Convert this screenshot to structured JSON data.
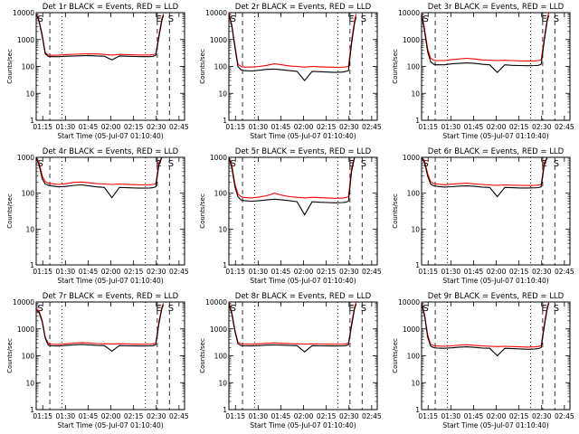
{
  "chart_data": [
    {
      "type": "line",
      "title": "Det 1r BLACK = Events, RED = LLD",
      "xlabel": "Start Time (05-Jul-07 01:10:40)",
      "ylabel": "Counts/sec",
      "yscale": "log",
      "ylim": [
        1,
        10000
      ],
      "x_ticks": [
        "01:15",
        "01:30",
        "01:45",
        "02:00",
        "02:15",
        "02:30",
        "02:45"
      ],
      "y_ticks": [
        "1",
        "10",
        "100",
        "1000",
        "10000"
      ],
      "markers": [
        "S",
        "E",
        "S"
      ],
      "x": [
        0,
        2,
        4,
        6,
        8,
        10,
        15,
        20,
        25,
        30,
        35,
        40,
        45,
        50,
        55,
        60,
        65,
        70,
        75,
        77,
        79,
        81,
        83,
        84
      ],
      "series": [
        {
          "name": "Events",
          "color": "#000000",
          "values": [
            9000,
            4500,
            1300,
            300,
            235,
            230,
            230,
            240,
            245,
            250,
            255,
            245,
            240,
            175,
            245,
            240,
            235,
            230,
            230,
            235,
            260,
            1200,
            5000,
            8000
          ]
        },
        {
          "name": "LLD",
          "color": "#ff0000",
          "values": [
            9500,
            5000,
            1500,
            330,
            265,
            260,
            265,
            275,
            285,
            290,
            295,
            290,
            280,
            265,
            280,
            275,
            270,
            265,
            268,
            270,
            300,
            1400,
            6000,
            9000
          ]
        }
      ]
    },
    {
      "type": "line",
      "title": "Det 2r BLACK = Events, RED = LLD",
      "xlabel": "Start Time (05-Jul-07 01:10:40)",
      "ylabel": "Counts/sec",
      "yscale": "log",
      "ylim": [
        1,
        10000
      ],
      "x_ticks": [
        "01:15",
        "01:30",
        "01:45",
        "02:00",
        "02:15",
        "02:30",
        "02:45"
      ],
      "y_ticks": [
        "1",
        "10",
        "100",
        "1000",
        "10000"
      ],
      "markers": [
        "S",
        "E",
        "S"
      ],
      "x": [
        0,
        2,
        4,
        6,
        8,
        10,
        15,
        20,
        25,
        30,
        35,
        40,
        45,
        50,
        55,
        60,
        65,
        70,
        75,
        77,
        79,
        81,
        83,
        84
      ],
      "series": [
        {
          "name": "Events",
          "color": "#000000",
          "values": [
            9000,
            3000,
            500,
            100,
            75,
            70,
            68,
            72,
            78,
            80,
            75,
            70,
            66,
            30,
            66,
            64,
            62,
            60,
            62,
            65,
            70,
            700,
            4000,
            7000
          ]
        },
        {
          "name": "LLD",
          "color": "#ff0000",
          "values": [
            9500,
            3500,
            600,
            120,
            100,
            95,
            95,
            100,
            110,
            125,
            115,
            105,
            100,
            95,
            100,
            97,
            95,
            93,
            94,
            96,
            100,
            900,
            5000,
            9000
          ]
        }
      ]
    },
    {
      "type": "line",
      "title": "Det 3r BLACK = Events, RED = LLD",
      "xlabel": "Start Time (05-Jul-07 01:10:40)",
      "ylabel": "Counts/sec",
      "yscale": "log",
      "ylim": [
        1,
        10000
      ],
      "x_ticks": [
        "01:15",
        "01:30",
        "01:45",
        "02:00",
        "02:15",
        "02:30",
        "02:45"
      ],
      "y_ticks": [
        "1",
        "10",
        "100",
        "1000",
        "10000"
      ],
      "markers": [
        "S",
        "E",
        "S"
      ],
      "x": [
        0,
        2,
        4,
        6,
        8,
        10,
        15,
        20,
        25,
        30,
        35,
        40,
        45,
        50,
        55,
        60,
        65,
        70,
        75,
        77,
        79,
        81,
        83,
        84
      ],
      "series": [
        {
          "name": "Events",
          "color": "#000000",
          "values": [
            9000,
            2000,
            350,
            150,
            120,
            115,
            115,
            125,
            130,
            135,
            130,
            120,
            115,
            60,
            115,
            110,
            108,
            106,
            108,
            110,
            120,
            900,
            5000,
            8000
          ]
        },
        {
          "name": "LLD",
          "color": "#ff0000",
          "values": [
            9500,
            2500,
            450,
            200,
            170,
            165,
            165,
            180,
            190,
            200,
            190,
            175,
            170,
            165,
            170,
            165,
            162,
            160,
            162,
            165,
            175,
            1100,
            6000,
            9500
          ]
        }
      ]
    },
    {
      "type": "line",
      "title": "Det 4r BLACK = Events, RED = LLD",
      "xlabel": "Start Time (05-Jul-07 01:10:40)",
      "ylabel": "Counts/sec",
      "yscale": "log",
      "ylim": [
        1,
        1000
      ],
      "x_ticks": [
        "01:15",
        "01:30",
        "01:45",
        "02:00",
        "02:15",
        "02:30",
        "02:45"
      ],
      "y_ticks": [
        "1",
        "10",
        "100",
        "1000"
      ],
      "markers": [
        "S",
        "E",
        "S"
      ],
      "x": [
        0,
        2,
        4,
        6,
        8,
        10,
        15,
        20,
        25,
        30,
        35,
        40,
        45,
        50,
        55,
        60,
        65,
        70,
        75,
        77,
        79,
        81,
        83,
        84
      ],
      "series": [
        {
          "name": "Events",
          "color": "#000000",
          "values": [
            1000,
            600,
            250,
            180,
            165,
            160,
            150,
            155,
            165,
            170,
            160,
            150,
            145,
            75,
            145,
            142,
            140,
            138,
            140,
            142,
            150,
            600,
            1000,
            1000
          ]
        },
        {
          "name": "LLD",
          "color": "#ff0000",
          "values": [
            1000,
            700,
            300,
            210,
            190,
            185,
            175,
            185,
            200,
            205,
            195,
            185,
            180,
            175,
            180,
            176,
            173,
            170,
            172,
            175,
            185,
            700,
            1000,
            1000
          ]
        }
      ]
    },
    {
      "type": "line",
      "title": "Det 5r BLACK = Events, RED = LLD",
      "xlabel": "Start Time (05-Jul-07 01:10:40)",
      "ylabel": "Counts/sec",
      "yscale": "log",
      "ylim": [
        1,
        1000
      ],
      "x_ticks": [
        "01:15",
        "01:30",
        "01:45",
        "02:00",
        "02:15",
        "02:30",
        "02:45"
      ],
      "y_ticks": [
        "1",
        "10",
        "100",
        "1000"
      ],
      "markers": [
        "S",
        "E",
        "S"
      ],
      "x": [
        0,
        2,
        4,
        6,
        8,
        10,
        15,
        20,
        25,
        30,
        35,
        40,
        45,
        50,
        55,
        60,
        65,
        70,
        75,
        77,
        79,
        81,
        83,
        84
      ],
      "series": [
        {
          "name": "Events",
          "color": "#000000",
          "values": [
            1000,
            500,
            150,
            80,
            65,
            62,
            60,
            62,
            65,
            68,
            65,
            62,
            58,
            25,
            58,
            56,
            55,
            54,
            55,
            56,
            60,
            400,
            1000,
            1000
          ]
        },
        {
          "name": "LLD",
          "color": "#ff0000",
          "values": [
            1000,
            600,
            180,
            95,
            80,
            76,
            74,
            78,
            85,
            100,
            88,
            80,
            77,
            74,
            77,
            75,
            74,
            72,
            73,
            75,
            80,
            500,
            1000,
            1000
          ]
        }
      ]
    },
    {
      "type": "line",
      "title": "Det 6r BLACK = Events, RED = LLD",
      "xlabel": "Start Time (05-Jul-07 01:10:40)",
      "ylabel": "Counts/sec",
      "yscale": "log",
      "ylim": [
        1,
        1000
      ],
      "x_ticks": [
        "01:15",
        "01:30",
        "01:45",
        "02:00",
        "02:15",
        "02:30",
        "02:45"
      ],
      "y_ticks": [
        "1",
        "10",
        "100",
        "1000"
      ],
      "markers": [
        "S",
        "E",
        "S"
      ],
      "x": [
        0,
        2,
        4,
        6,
        8,
        10,
        15,
        20,
        25,
        30,
        35,
        40,
        45,
        50,
        55,
        60,
        65,
        70,
        75,
        77,
        79,
        81,
        83,
        84
      ],
      "series": [
        {
          "name": "Events",
          "color": "#000000",
          "values": [
            1000,
            700,
            300,
            180,
            160,
            155,
            148,
            152,
            158,
            160,
            155,
            148,
            145,
            80,
            145,
            142,
            140,
            140,
            141,
            143,
            150,
            600,
            1000,
            1000
          ]
        },
        {
          "name": "LLD",
          "color": "#ff0000",
          "values": [
            1000,
            800,
            350,
            210,
            185,
            180,
            172,
            178,
            185,
            190,
            182,
            175,
            170,
            165,
            170,
            167,
            165,
            164,
            165,
            168,
            175,
            700,
            1000,
            1000
          ]
        }
      ]
    },
    {
      "type": "line",
      "title": "Det 7r BLACK = Events, RED = LLD",
      "xlabel": "Start Time (05-Jul-07 01:10:40)",
      "ylabel": "Counts/sec",
      "yscale": "log",
      "ylim": [
        1,
        10000
      ],
      "x_ticks": [
        "01:15",
        "01:30",
        "01:45",
        "02:00",
        "02:15",
        "02:30",
        "02:45"
      ],
      "y_ticks": [
        "1",
        "10",
        "100",
        "1000",
        "10000"
      ],
      "markers": [
        "S",
        "E",
        "S"
      ],
      "x": [
        0,
        2,
        4,
        6,
        8,
        10,
        15,
        20,
        25,
        30,
        35,
        40,
        45,
        50,
        55,
        60,
        65,
        70,
        75,
        77,
        79,
        81,
        83,
        84
      ],
      "series": [
        {
          "name": "Events",
          "color": "#000000",
          "values": [
            5000,
            4000,
            1800,
            450,
            250,
            235,
            230,
            245,
            255,
            265,
            255,
            245,
            240,
            150,
            240,
            235,
            232,
            230,
            232,
            236,
            260,
            1500,
            5500,
            8000
          ]
        },
        {
          "name": "LLD",
          "color": "#ff0000",
          "values": [
            5500,
            4500,
            2000,
            500,
            290,
            270,
            265,
            280,
            295,
            310,
            300,
            285,
            280,
            275,
            280,
            275,
            272,
            270,
            272,
            276,
            300,
            1800,
            6500,
            9000
          ]
        }
      ]
    },
    {
      "type": "line",
      "title": "Det 8r BLACK = Events, RED = LLD",
      "xlabel": "Start Time (05-Jul-07 01:10:40)",
      "ylabel": "Counts/sec",
      "yscale": "log",
      "ylim": [
        1,
        10000
      ],
      "x_ticks": [
        "01:15",
        "01:30",
        "01:45",
        "02:00",
        "02:15",
        "02:30",
        "02:45"
      ],
      "y_ticks": [
        "1",
        "10",
        "100",
        "1000",
        "10000"
      ],
      "markers": [
        "S",
        "E",
        "S"
      ],
      "x": [
        0,
        2,
        4,
        6,
        8,
        10,
        15,
        20,
        25,
        30,
        35,
        40,
        45,
        50,
        55,
        60,
        65,
        70,
        75,
        77,
        79,
        81,
        83,
        84
      ],
      "series": [
        {
          "name": "Events",
          "color": "#000000",
          "values": [
            9000,
            3500,
            800,
            280,
            240,
            235,
            232,
            240,
            250,
            255,
            250,
            242,
            238,
            140,
            238,
            235,
            232,
            230,
            232,
            236,
            260,
            1300,
            5500,
            8500
          ]
        },
        {
          "name": "LLD",
          "color": "#ff0000",
          "values": [
            9500,
            4000,
            900,
            320,
            280,
            275,
            270,
            280,
            292,
            300,
            292,
            282,
            278,
            272,
            278,
            275,
            272,
            270,
            272,
            276,
            300,
            1600,
            6500,
            9500
          ]
        }
      ]
    },
    {
      "type": "line",
      "title": "Det 9r BLACK = Events, RED = LLD",
      "xlabel": "Start Time (05-Jul-07 01:10:40)",
      "ylabel": "Counts/sec",
      "yscale": "log",
      "ylim": [
        1,
        10000
      ],
      "x_ticks": [
        "01:15",
        "01:30",
        "01:45",
        "02:00",
        "02:15",
        "02:30",
        "02:45"
      ],
      "y_ticks": [
        "1",
        "10",
        "100",
        "1000",
        "10000"
      ],
      "markers": [
        "S",
        "E",
        "S"
      ],
      "x": [
        0,
        2,
        4,
        6,
        8,
        10,
        15,
        20,
        25,
        30,
        35,
        40,
        45,
        50,
        55,
        60,
        65,
        70,
        75,
        77,
        79,
        81,
        83,
        84
      ],
      "series": [
        {
          "name": "Events",
          "color": "#000000",
          "values": [
            9000,
            3000,
            500,
            230,
            200,
            195,
            190,
            198,
            210,
            215,
            205,
            195,
            190,
            100,
            190,
            185,
            180,
            175,
            180,
            185,
            200,
            1200,
            5500,
            9000
          ]
        },
        {
          "name": "LLD",
          "color": "#ff0000",
          "values": [
            9500,
            3500,
            600,
            270,
            240,
            232,
            225,
            235,
            250,
            258,
            245,
            232,
            225,
            220,
            225,
            220,
            215,
            210,
            215,
            220,
            240,
            1500,
            6500,
            9500
          ]
        }
      ]
    }
  ]
}
